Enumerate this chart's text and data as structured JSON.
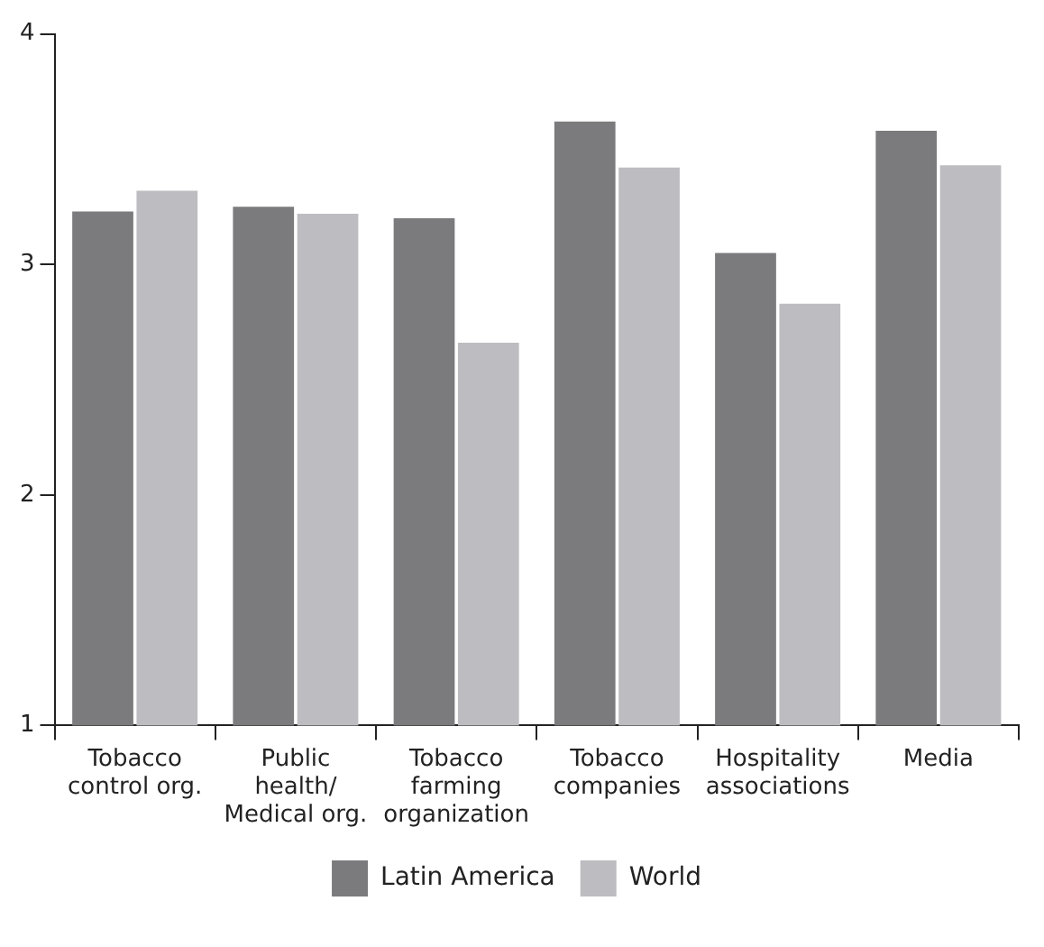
{
  "chart_data": {
    "type": "bar",
    "categories": [
      "Tobacco control org.",
      "Public health/ Medical org.",
      "Tobacco farming organization",
      "Tobacco companies",
      "Hospitality associations",
      "Media"
    ],
    "series": [
      {
        "name": "Latin America",
        "color": "#7b7b7e",
        "values": [
          3.23,
          3.25,
          3.2,
          3.62,
          3.05,
          3.58
        ]
      },
      {
        "name": "World",
        "color": "#bdbdc1",
        "values": [
          3.32,
          3.22,
          2.66,
          3.42,
          2.83,
          3.43
        ]
      }
    ],
    "ylim": [
      1,
      4
    ],
    "yticks": [
      1,
      2,
      3,
      4
    ],
    "grid": false,
    "legend": "bottom"
  }
}
